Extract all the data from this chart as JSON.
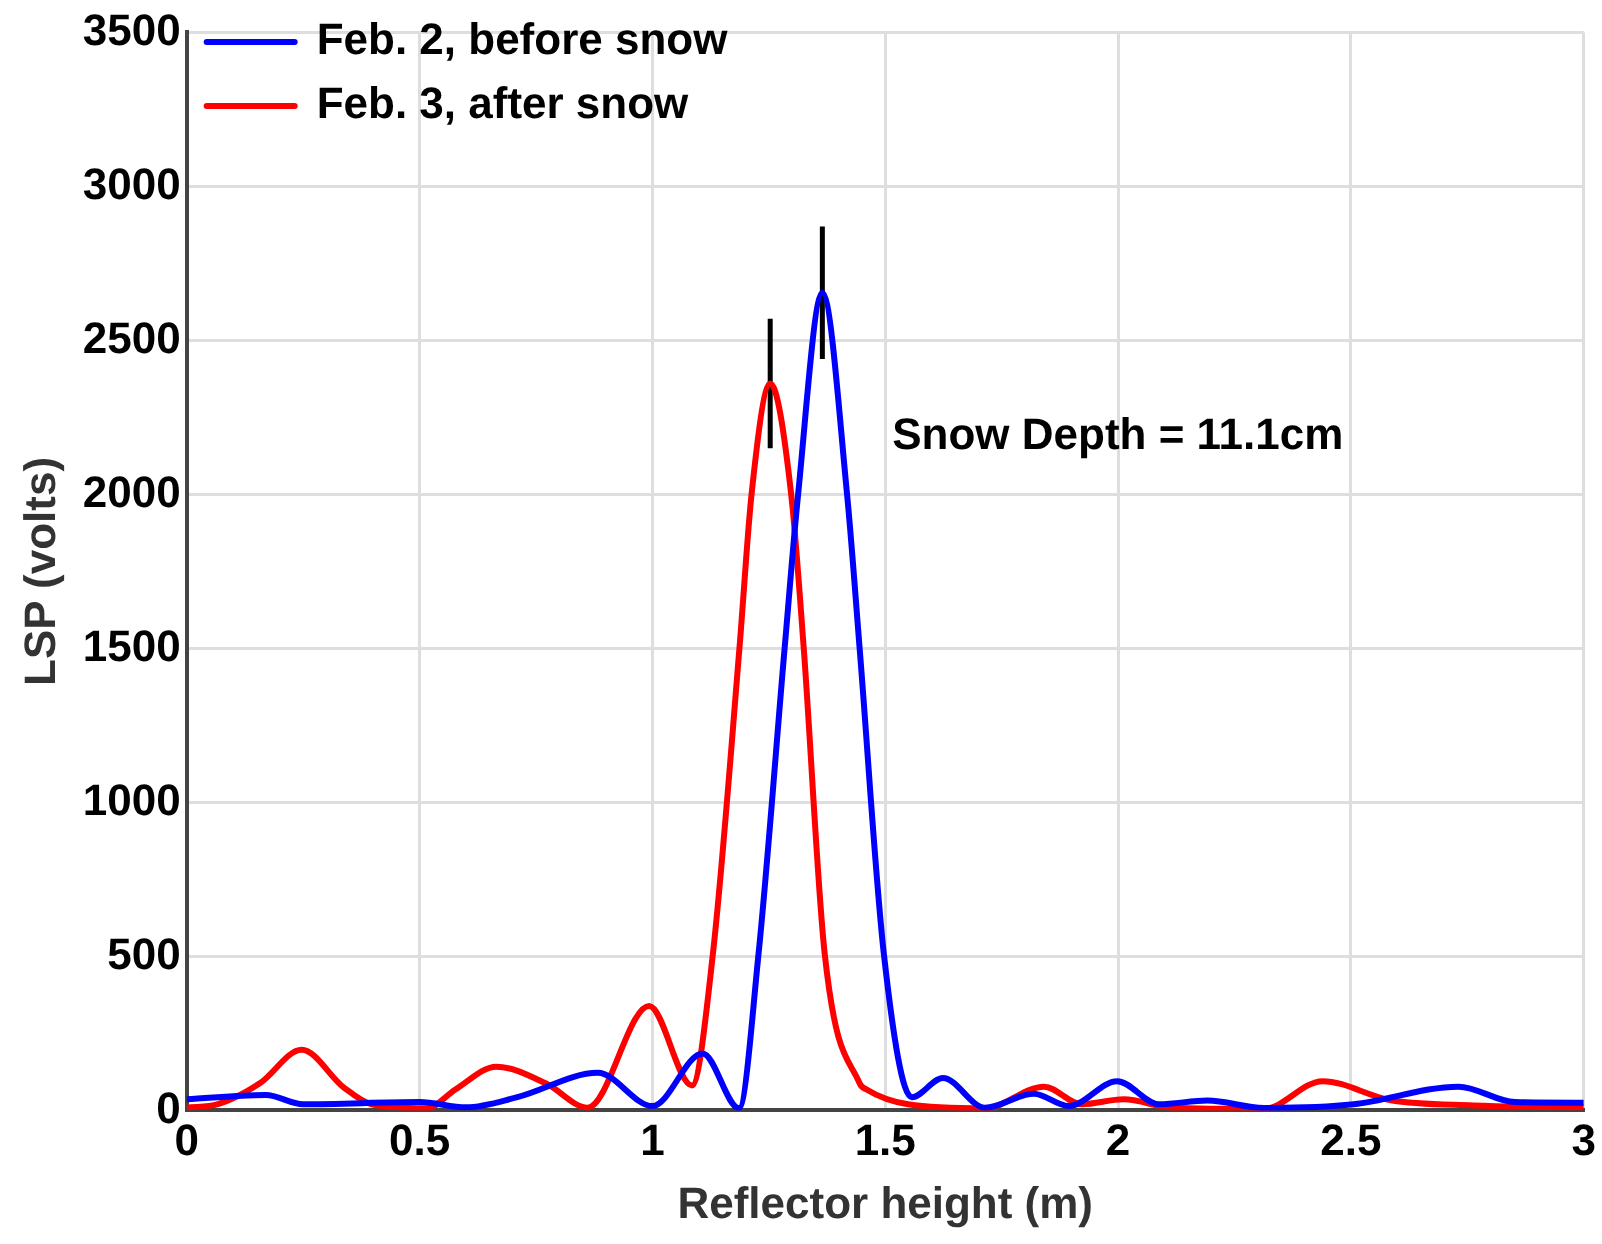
{
  "chart_data": {
    "type": "line",
    "xlabel": "Reflector height (m)",
    "ylabel": "LSP (volts)",
    "xlim": [
      0,
      3
    ],
    "xticks": [
      0,
      0.5,
      1,
      1.5,
      2,
      2.5,
      3
    ],
    "ylim": [
      0,
      3500
    ],
    "yticks": [
      0,
      500,
      1000,
      1500,
      2000,
      2500,
      3000,
      3500
    ],
    "grid": true,
    "legend": "top left",
    "line_style": "solid",
    "annotations": [
      "Snow Depth = 11.1cm"
    ],
    "series": [
      {
        "name": "Feb. 2, before snow",
        "color": "#0000ff",
        "x": [
          0,
          0.17,
          0.25,
          0.5,
          0.6,
          0.71,
          0.883,
          1.0,
          1.108,
          1.186,
          1.228,
          1.284,
          1.313,
          1.365,
          1.418,
          1.445,
          1.497,
          1.557,
          1.624,
          1.714,
          1.819,
          1.894,
          1.998,
          2.088,
          2.192,
          2.313,
          2.506,
          2.731,
          2.852,
          3
        ],
        "values": [
          36,
          50,
          20,
          27,
          10,
          43,
          122,
          14,
          185,
          7,
          509,
          1501,
          2001,
          2655,
          2001,
          1501,
          509,
          43,
          105,
          9,
          54,
          14,
          95,
          20,
          32,
          8,
          20,
          77,
          27,
          25
        ]
      },
      {
        "name": "Feb. 3, after snow",
        "color": "#ff0000",
        "x": [
          0,
          0.067,
          0.157,
          0.247,
          0.337,
          0.397,
          0.516,
          0.577,
          0.665,
          0.771,
          0.861,
          0.993,
          1.085,
          1.13,
          1.187,
          1.213,
          1.253,
          1.298,
          1.325,
          1.37,
          1.445,
          1.46,
          1.549,
          1.714,
          1.841,
          1.922,
          2.012,
          2.115,
          2.313,
          2.439,
          2.583,
          2.763,
          3
        ],
        "values": [
          9,
          20,
          88,
          197,
          75,
          20,
          7,
          68,
          142,
          88,
          9,
          339,
          81,
          509,
          1501,
          2001,
          2360,
          2001,
          1501,
          509,
          88,
          68,
          20,
          7,
          77,
          20,
          36,
          9,
          5,
          95,
          34,
          16,
          10
        ]
      },
      {
        "type": "line",
        "color": "#000000",
        "x": [
          1.365,
          1.365
        ],
        "values": [
          2440,
          2870
        ]
      },
      {
        "type": "line",
        "color": "#000000",
        "x": [
          1.253,
          1.253
        ],
        "values": [
          2150,
          2570
        ]
      }
    ]
  }
}
